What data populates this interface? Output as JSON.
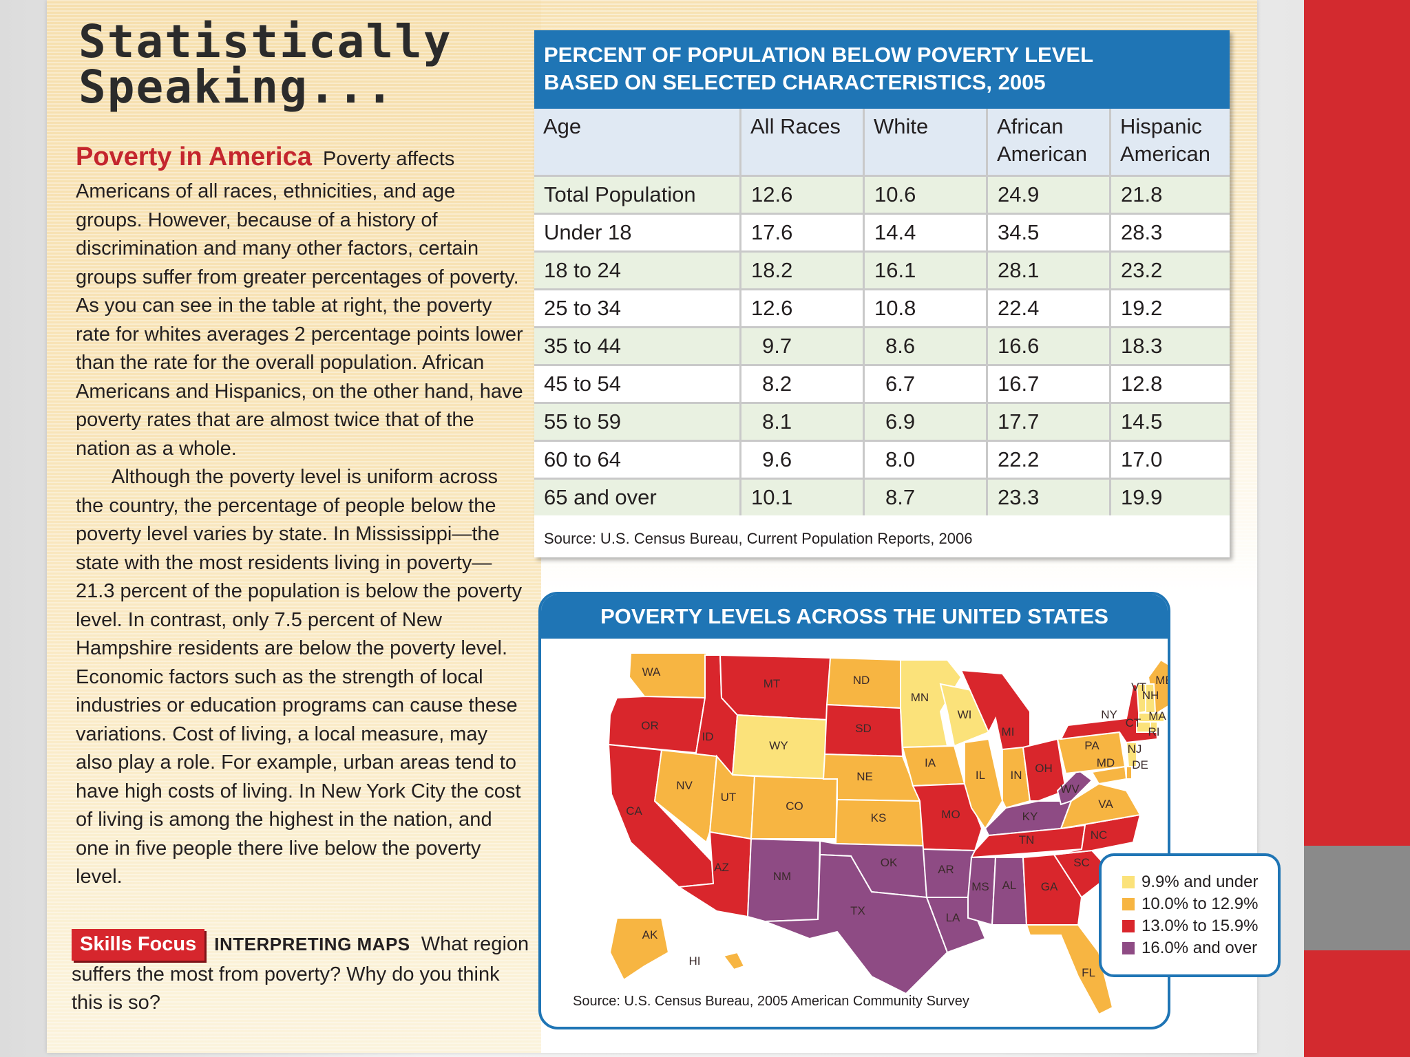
{
  "title": {
    "line1": "Statistically",
    "line2": "Speaking..."
  },
  "article": {
    "heading": "Poverty in America",
    "para1_lead": "Poverty affects",
    "para1": "Americans of all races, ethnicities, and age groups. However, because of a history of discrimination and many other factors, certain groups suffer from greater percentages of poverty. As you can see in the table at right, the poverty rate for whites averages 2 percentage points lower than the rate for the overall population. African Americans and Hispanics, on the other hand, have poverty rates that are almost twice that of the nation as a whole.",
    "para2": "Although the poverty level is uniform across the country, the percentage of people below the poverty level varies by state. In Mississippi—the state with the most residents living in poverty—21.3 percent of the population is below the poverty level. In contrast, only 7.5 percent of New Hampshire residents are below the poverty level. Economic factors such as the strength of local industries or education programs can cause these variations. Cost of living, a local measure, may also play a role. For example, urban areas tend to have high costs of living. In New York City the cost of living is among the highest in the nation, and one in five people there live below the poverty level."
  },
  "skills": {
    "badge": "Skills Focus",
    "label": "INTERPRETING MAPS",
    "question": "What region suffers the most from poverty? Why do you think this is so?"
  },
  "table": {
    "title_line1": "PERCENT OF POPULATION BELOW POVERTY LEVEL",
    "title_line2": "BASED ON SELECTED CHARACTERISTICS, 2005",
    "headers": [
      "Age",
      "All Races",
      "White",
      "African American",
      "Hispanic American"
    ],
    "rows": [
      [
        "Total Population",
        "12.6",
        "10.6",
        "24.9",
        "21.8"
      ],
      [
        "Under 18",
        "17.6",
        "14.4",
        "34.5",
        "28.3"
      ],
      [
        "18 to 24",
        "18.2",
        "16.1",
        "28.1",
        "23.2"
      ],
      [
        "25 to 34",
        "12.6",
        "10.8",
        "22.4",
        "19.2"
      ],
      [
        "35 to 44",
        "9.7",
        "8.6",
        "16.6",
        "18.3"
      ],
      [
        "45 to 54",
        "8.2",
        "6.7",
        "16.7",
        "12.8"
      ],
      [
        "55 to 59",
        "8.1",
        "6.9",
        "17.7",
        "14.5"
      ],
      [
        "60 to 64",
        "9.6",
        "8.0",
        "22.2",
        "17.0"
      ],
      [
        "65 and over",
        "10.1",
        "8.7",
        "23.3",
        "19.9"
      ]
    ],
    "source": "Source: U.S. Census Bureau, Current Population Reports, 2006"
  },
  "map": {
    "title": "POVERTY LEVELS ACROSS THE UNITED STATES",
    "source": "Source: U.S. Census Bureau, 2005 American Community Survey",
    "colors": {
      "low": "#fbe27a",
      "mid": "#f7b542",
      "high": "#d9262c",
      "top": "#8e4b84"
    },
    "legend": [
      "9.9% and under",
      "10.0% to 12.9%",
      "13.0% to 15.9%",
      "16.0% and over"
    ],
    "states": [
      "WA",
      "OR",
      "CA",
      "ID",
      "NV",
      "MT",
      "WY",
      "UT",
      "CO",
      "AZ",
      "NM",
      "ND",
      "SD",
      "NE",
      "KS",
      "OK",
      "TX",
      "MN",
      "IA",
      "MO",
      "AR",
      "LA",
      "WI",
      "IL",
      "MI",
      "IN",
      "OH",
      "KY",
      "TN",
      "MS",
      "AL",
      "GA",
      "FL",
      "SC",
      "NC",
      "VA",
      "WV",
      "PA",
      "NY",
      "ME",
      "VT",
      "NH",
      "MA",
      "CT",
      "RI",
      "NJ",
      "MD",
      "DE",
      "AK",
      "HI"
    ]
  }
}
